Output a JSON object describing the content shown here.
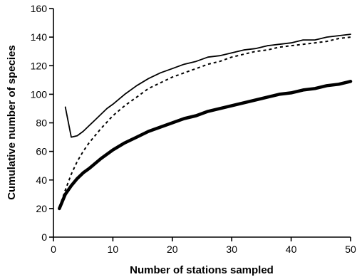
{
  "chart_data": {
    "type": "line",
    "xlabel": "Number of stations sampled",
    "ylabel": "Cumulative number of species",
    "xlim": [
      0,
      50
    ],
    "ylim": [
      0,
      160
    ],
    "xticks": [
      0,
      10,
      20,
      30,
      40,
      50
    ],
    "yticks": [
      0,
      20,
      40,
      60,
      80,
      100,
      120,
      140,
      160
    ],
    "grid": false,
    "legend": "none",
    "series": [
      {
        "style": "thin solid",
        "color": "#000000",
        "x": [
          2,
          3,
          4,
          5,
          6,
          7,
          8,
          9,
          10,
          12,
          14,
          16,
          18,
          20,
          22,
          24,
          26,
          28,
          30,
          32,
          34,
          36,
          38,
          40,
          42,
          44,
          46,
          48,
          50
        ],
        "values": [
          91,
          70,
          71,
          74,
          78,
          82,
          86,
          90,
          93,
          100,
          106,
          111,
          115,
          118,
          121,
          123,
          126,
          127,
          129,
          131,
          132,
          134,
          135,
          136,
          138,
          138,
          140,
          141,
          142
        ]
      },
      {
        "style": "dashed",
        "color": "#000000",
        "x": [
          1,
          2,
          3,
          4,
          5,
          6,
          8,
          10,
          12,
          14,
          16,
          18,
          20,
          22,
          24,
          26,
          28,
          30,
          32,
          34,
          36,
          38,
          40,
          42,
          44,
          46,
          48,
          50
        ],
        "values": [
          21,
          33,
          44,
          53,
          60,
          66,
          76,
          85,
          92,
          98,
          104,
          108,
          112,
          115,
          118,
          121,
          123,
          126,
          128,
          130,
          131,
          133,
          134,
          135,
          136,
          137,
          139,
          140
        ]
      },
      {
        "style": "thick solid",
        "color": "#000000",
        "x": [
          1,
          2,
          3,
          4,
          5,
          6,
          8,
          10,
          12,
          14,
          16,
          18,
          20,
          22,
          24,
          26,
          28,
          30,
          32,
          34,
          36,
          38,
          40,
          42,
          44,
          46,
          48,
          50
        ],
        "values": [
          20,
          30,
          36,
          41,
          45,
          48,
          55,
          61,
          66,
          70,
          74,
          77,
          80,
          83,
          85,
          88,
          90,
          92,
          94,
          96,
          98,
          100,
          101,
          103,
          104,
          106,
          107,
          109
        ]
      }
    ]
  }
}
